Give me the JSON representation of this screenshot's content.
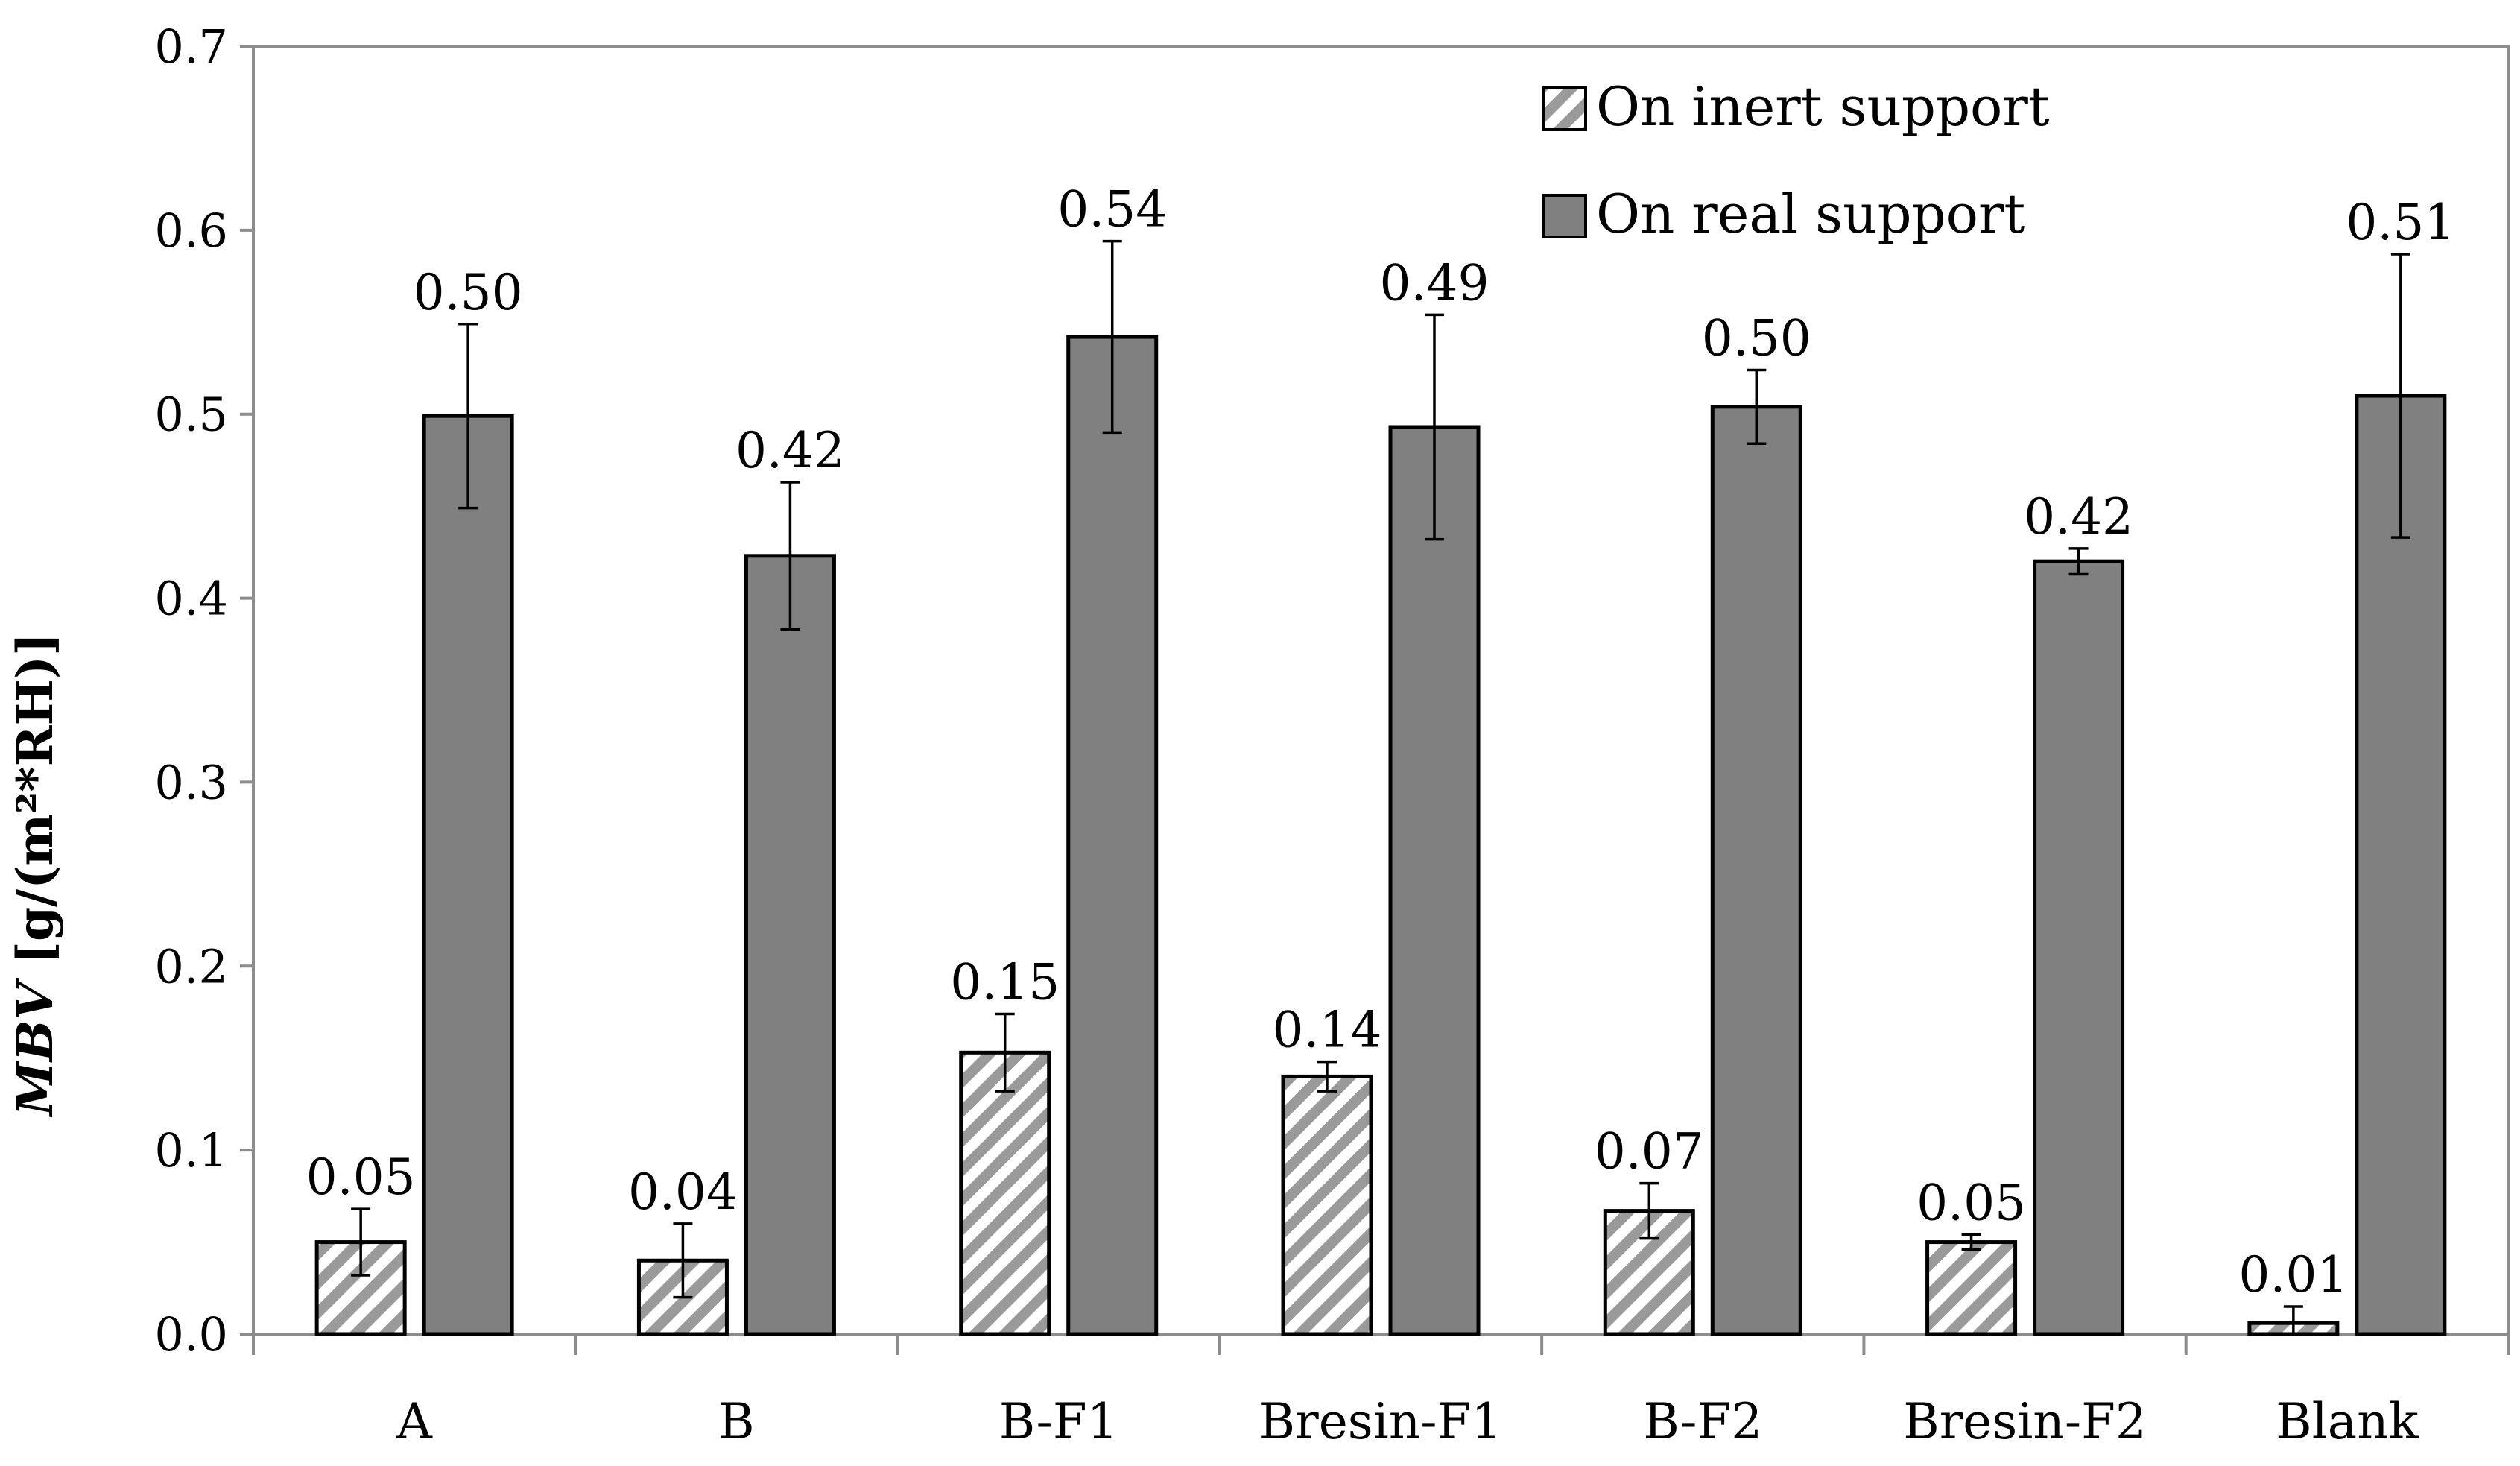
{
  "chart_data": {
    "type": "bar",
    "title": "",
    "xlabel": "",
    "ylabel": {
      "italic": "MBV",
      "rest": " [g/(m²*RH)]"
    },
    "ylim": [
      0,
      0.7
    ],
    "yticks": [
      "0.0",
      "0.1",
      "0.2",
      "0.3",
      "0.4",
      "0.5",
      "0.6",
      "0.7"
    ],
    "categories": [
      "A",
      "B",
      "B-F1",
      "Bresin-F1",
      "B-F2",
      "Bresin-F2",
      "Blank"
    ],
    "series": [
      {
        "name": "On inert support",
        "fill": "hatched",
        "values": [
          0.05,
          0.04,
          0.153,
          0.14,
          0.067,
          0.05,
          0.006
        ],
        "errors": [
          0.018,
          0.02,
          0.021,
          0.008,
          0.015,
          0.004,
          0.009
        ],
        "labels": [
          "0.05",
          "0.04",
          "0.15",
          "0.14",
          "0.07",
          "0.05",
          "0.01"
        ]
      },
      {
        "name": "On real support",
        "fill": "solid",
        "values": [
          0.499,
          0.423,
          0.542,
          0.493,
          0.504,
          0.42,
          0.51
        ],
        "errors": [
          0.05,
          0.04,
          0.052,
          0.061,
          0.02,
          0.007,
          0.077
        ],
        "labels": [
          "0.50",
          "0.42",
          "0.54",
          "0.49",
          "0.50",
          "0.42",
          "0.51"
        ]
      }
    ],
    "legend_position": "top-right",
    "grid": false
  },
  "colors": {
    "solid_bar": "#808080",
    "hatch_stripe": "#9a9a9a",
    "outline": "#000000",
    "axis": "#8c8c8c",
    "background": "#ffffff"
  }
}
